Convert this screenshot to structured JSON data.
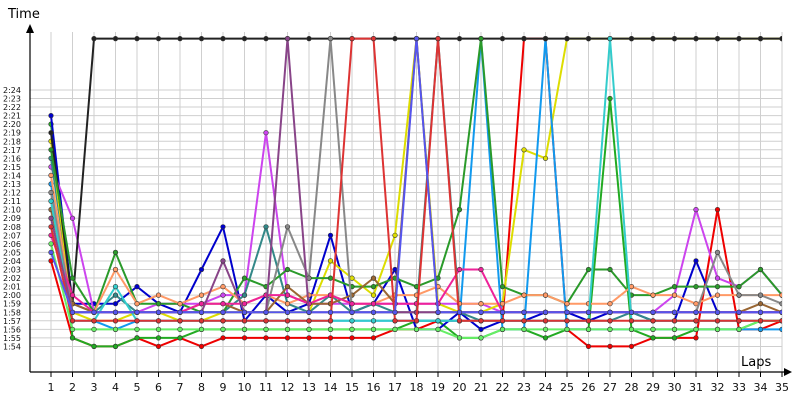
{
  "chart_data": {
    "type": "line",
    "title": "",
    "ylabel": "Time",
    "xlabel": "Laps",
    "grid": true,
    "legend": "none",
    "x": [
      1,
      2,
      3,
      4,
      5,
      6,
      7,
      8,
      9,
      10,
      11,
      12,
      13,
      14,
      15,
      16,
      17,
      18,
      19,
      20,
      21,
      22,
      23,
      24,
      25,
      26,
      27,
      28,
      29,
      30,
      31,
      32,
      33,
      34,
      35
    ],
    "xlim": [
      1,
      35
    ],
    "ylim_seconds": [
      113,
      145
    ],
    "ytick_labels": [
      "1:54",
      "1:55",
      "1:56",
      "1:57",
      "1:58",
      "1:59",
      "2:00",
      "2:01",
      "2:02",
      "2:03",
      "2:04",
      "2:05",
      "2:06",
      "2:07",
      "2:08",
      "2:09",
      "2:10",
      "2:11",
      "2:12",
      "2:13",
      "2:14",
      "2:15",
      "2:16",
      "2:17",
      "2:18",
      "2:19",
      "2:20",
      "2:21",
      "2:22",
      "2:23",
      "2:24"
    ],
    "xtick_labels": [
      "1",
      "2",
      "3",
      "4",
      "5",
      "6",
      "7",
      "8",
      "9",
      "10",
      "11",
      "12",
      "13",
      "14",
      "15",
      "16",
      "17",
      "18",
      "19",
      "20",
      "21",
      "22",
      "23",
      "24",
      "25",
      "26",
      "27",
      "28",
      "29",
      "30",
      "31",
      "32",
      "33",
      "34",
      "35"
    ],
    "series": [
      {
        "color": "#ee0000",
        "values": [
          "2:04",
          "1:55",
          "1:54",
          "1:54",
          "1:55",
          "1:54",
          "1:55",
          "1:54",
          "1:55",
          "1:55",
          "1:55",
          "1:55",
          "1:55",
          "1:55",
          "1:55",
          "1:55",
          "1:56",
          "1:56",
          "1:57",
          "1:57",
          "1:57",
          "1:57",
          "2:30",
          "2:30",
          "1:56",
          "1:54",
          "1:54",
          "1:54",
          "1:55",
          "1:55",
          "1:55",
          "2:10",
          "1:56",
          "1:56",
          "1:57"
        ]
      },
      {
        "color": "#22aa22",
        "values": [
          "2:20",
          "1:55",
          "1:54",
          "1:54",
          "1:55",
          "1:55",
          "1:55",
          "1:56",
          "1:56",
          "1:56",
          "1:56",
          "1:56",
          "1:56",
          "1:56",
          "1:56",
          "1:56",
          "1:56",
          "1:57",
          "1:57",
          "1:55",
          "1:55",
          "1:56",
          "1:56",
          "1:55",
          "1:56",
          "1:56",
          "2:23",
          "1:56",
          "1:55",
          "1:55",
          "1:56",
          "1:56",
          "1:56",
          "1:57",
          "1:57"
        ]
      },
      {
        "color": "#0000cc",
        "values": [
          "2:21",
          "1:59",
          "1:59",
          "1:59",
          "2:01",
          "1:59",
          "1:58",
          "2:03",
          "2:08",
          "1:57",
          "2:00",
          "1:58",
          "1:59",
          "2:07",
          "1:58",
          "1:59",
          "2:03",
          "1:56",
          "1:56",
          "1:58",
          "1:56",
          "1:57",
          "1:57",
          "1:58",
          "1:58",
          "1:57",
          "1:58",
          "1:58",
          "1:57",
          "1:57",
          "2:04",
          "1:58",
          "1:58",
          "1:58",
          "1:58"
        ]
      },
      {
        "color": "#cc44ee",
        "values": [
          "2:15",
          "2:09",
          "1:58",
          "1:58",
          "1:58",
          "1:59",
          "1:59",
          "1:59",
          "2:00",
          "2:00",
          "2:19",
          "2:00",
          "1:59",
          "1:59",
          "1:59",
          "1:59",
          "1:59",
          "1:59",
          "1:59",
          "1:59",
          "1:59",
          "1:58",
          "1:58",
          "1:58",
          "1:58",
          "1:58",
          "1:58",
          "1:58",
          "1:58",
          "2:00",
          "2:10",
          "2:02",
          "2:01",
          "2:03",
          "2:00"
        ]
      },
      {
        "color": "#338888",
        "values": [
          "2:16",
          "1:59",
          "1:58",
          "2:00",
          "1:58",
          "1:58",
          "1:58",
          "1:58",
          "1:58",
          "2:00",
          "2:08",
          "1:59",
          "1:58",
          "2:00",
          "1:58",
          "1:59",
          "1:58",
          "1:58",
          "2:30",
          "1:58",
          "1:57",
          "1:57",
          "1:57",
          "1:57",
          "1:57",
          "1:57",
          "1:57",
          "1:58",
          "1:57",
          "1:57",
          "1:57",
          "1:57",
          "1:57",
          "1:57",
          "1:57"
        ]
      },
      {
        "color": "#dddd00",
        "values": [
          "2:18",
          "1:58",
          "1:57",
          "1:57",
          "1:58",
          "1:58",
          "1:57",
          "1:57",
          "1:58",
          "1:58",
          "1:58",
          "1:58",
          "1:58",
          "2:04",
          "2:02",
          "2:00",
          "2:07",
          "2:30",
          "1:59",
          "1:58",
          "1:58",
          "1:59",
          "2:17",
          "2:16",
          "2:30",
          "2:30",
          "2:30",
          "2:30",
          "2:30",
          "2:30",
          "2:30",
          "2:30",
          "2:30",
          "2:30",
          "2:30"
        ]
      },
      {
        "color": "#1199ee",
        "values": [
          "2:13",
          "1:57",
          "1:57",
          "1:56",
          "1:57",
          "1:57",
          "1:57",
          "1:57",
          "1:57",
          "1:57",
          "1:57",
          "1:57",
          "1:57",
          "1:57",
          "1:57",
          "1:57",
          "1:57",
          "1:57",
          "1:57",
          "1:57",
          "2:30",
          "1:56",
          "1:56",
          "2:30",
          "1:56",
          "1:56",
          "1:56",
          "1:56",
          "1:56",
          "1:56",
          "1:56",
          "1:56",
          "1:56",
          "1:56",
          "1:56"
        ]
      },
      {
        "color": "#222222",
        "values": [
          "2:19",
          "1:59",
          "2:30",
          "2:30",
          "2:30",
          "2:30",
          "2:30",
          "2:30",
          "2:30",
          "2:30",
          "2:30",
          "2:30",
          "2:30",
          "2:30",
          "2:30",
          "2:30",
          "2:30",
          "2:30",
          "2:30",
          "2:30",
          "2:30",
          "2:30",
          "2:30",
          "2:30",
          "2:30",
          "2:30",
          "2:30",
          "2:30",
          "2:30",
          "2:30",
          "2:30",
          "2:30",
          "2:30",
          "2:30",
          "2:30"
        ]
      },
      {
        "color": "#2a9a2a",
        "values": [
          "2:17",
          "2:02",
          "1:58",
          "2:05",
          "1:59",
          "1:59",
          "1:59",
          "1:58",
          "1:58",
          "2:02",
          "2:01",
          "2:03",
          "2:02",
          "2:02",
          "2:01",
          "2:01",
          "2:02",
          "2:01",
          "2:02",
          "2:10",
          "2:30",
          "2:01",
          "2:00",
          "2:00",
          "1:59",
          "2:03",
          "2:03",
          "2:00",
          "2:00",
          "2:01",
          "2:01",
          "2:01",
          "2:01",
          "2:03",
          "2:00"
        ]
      },
      {
        "color": "#ff9966",
        "values": [
          "2:14",
          "1:58",
          "1:58",
          "2:03",
          "1:59",
          "2:00",
          "1:59",
          "2:00",
          "2:01",
          "1:59",
          "2:00",
          "1:59",
          "2:00",
          "2:00",
          "1:59",
          "1:59",
          "2:00",
          "2:00",
          "2:01",
          "1:59",
          "1:59",
          "1:59",
          "2:00",
          "2:00",
          "1:59",
          "1:59",
          "1:59",
          "2:01",
          "2:00",
          "2:00",
          "1:59",
          "2:00",
          "2:00",
          "2:00",
          "2:00"
        ]
      },
      {
        "color": "#996633",
        "values": [
          "2:10",
          "1:59",
          "1:58",
          "1:58",
          "1:58",
          "1:58",
          "1:58",
          "1:59",
          "1:59",
          "1:58",
          "1:58",
          "2:01",
          "1:59",
          "1:59",
          "2:00",
          "2:02",
          "1:59",
          "2:30",
          "1:58",
          "1:58",
          "1:58",
          "1:58",
          "1:58",
          "1:58",
          "1:58",
          "1:58",
          "1:58",
          "1:58",
          "1:58",
          "1:58",
          "1:58",
          "1:58",
          "1:58",
          "1:59",
          "1:58"
        ]
      },
      {
        "color": "#888888",
        "values": [
          "2:12",
          "1:58",
          "1:58",
          "1:58",
          "1:58",
          "1:58",
          "1:58",
          "1:58",
          "1:58",
          "1:58",
          "1:58",
          "2:08",
          "2:02",
          "2:30",
          "1:58",
          "1:58",
          "1:58",
          "1:58",
          "1:58",
          "1:58",
          "1:58",
          "1:58",
          "1:58",
          "1:58",
          "1:58",
          "1:58",
          "1:58",
          "1:58",
          "1:58",
          "1:58",
          "1:58",
          "2:05",
          "2:00",
          "2:00",
          "1:59"
        ]
      },
      {
        "color": "#ee2299",
        "values": [
          "2:07",
          "2:00",
          "1:58",
          "1:58",
          "1:58",
          "1:58",
          "1:58",
          "1:59",
          "1:59",
          "1:59",
          "2:00",
          "2:00",
          "1:59",
          "2:00",
          "1:59",
          "1:59",
          "1:59",
          "1:59",
          "1:59",
          "2:03",
          "2:03",
          "1:58",
          "1:58",
          "1:58",
          "1:58",
          "1:58",
          "1:58",
          "1:58",
          "1:58",
          "1:58",
          "1:58",
          "1:58",
          "1:58",
          "1:58",
          "1:58"
        ]
      },
      {
        "color": "#33cccc",
        "values": [
          "2:11",
          "1:57",
          "1:57",
          "2:01",
          "1:57",
          "1:57",
          "1:57",
          "1:57",
          "1:57",
          "1:57",
          "1:57",
          "1:57",
          "1:57",
          "1:57",
          "1:57",
          "1:57",
          "1:57",
          "1:57",
          "1:57",
          "1:57",
          "1:57",
          "1:57",
          "1:57",
          "1:57",
          "1:57",
          "1:57",
          "2:30",
          "1:57",
          "1:57",
          "1:57",
          "1:57",
          "1:57",
          "1:57",
          "1:57",
          "1:57"
        ]
      },
      {
        "color": "#884488",
        "values": [
          "2:09",
          "1:58",
          "1:58",
          "1:58",
          "1:58",
          "1:58",
          "1:58",
          "1:58",
          "2:04",
          "1:58",
          "1:58",
          "2:30",
          "1:58",
          "1:58",
          "1:58",
          "1:58",
          "1:58",
          "1:58",
          "1:58",
          "1:58",
          "1:58",
          "1:58",
          "1:58",
          "1:58",
          "1:58",
          "1:58",
          "1:58",
          "1:58",
          "1:58",
          "1:58",
          "1:58",
          "1:58",
          "1:58",
          "1:58",
          "1:58"
        ]
      },
      {
        "color": "#66ee66",
        "values": [
          "2:06",
          "1:56",
          "1:56",
          "1:56",
          "1:56",
          "1:56",
          "1:56",
          "1:56",
          "1:56",
          "1:56",
          "1:56",
          "1:56",
          "1:56",
          "1:56",
          "1:56",
          "1:56",
          "1:56",
          "1:56",
          "1:56",
          "1:55",
          "1:55",
          "1:56",
          "1:56",
          "1:56",
          "1:56",
          "1:56",
          "1:56",
          "1:56",
          "1:56",
          "1:56",
          "1:56",
          "1:56",
          "1:56",
          "1:57",
          "1:57"
        ]
      },
      {
        "color": "#dd3333",
        "values": [
          "2:08",
          "1:57",
          "1:57",
          "1:57",
          "1:57",
          "1:57",
          "1:57",
          "1:57",
          "1:57",
          "1:57",
          "1:57",
          "1:57",
          "1:57",
          "1:57",
          "2:30",
          "2:30",
          "1:57",
          "1:57",
          "2:30",
          "1:57",
          "1:57",
          "1:57",
          "1:57",
          "1:57",
          "1:57",
          "1:57",
          "1:57",
          "1:57",
          "1:57",
          "1:57",
          "1:57",
          "1:57",
          "1:57",
          "1:57",
          "1:57"
        ]
      },
      {
        "color": "#5555ee",
        "values": [
          "2:05",
          "1:58",
          "1:58",
          "1:58",
          "1:58",
          "1:58",
          "1:58",
          "1:58",
          "1:58",
          "1:58",
          "1:58",
          "1:58",
          "1:58",
          "1:58",
          "1:58",
          "1:58",
          "1:58",
          "2:30",
          "1:58",
          "1:58",
          "1:58",
          "1:58",
          "1:58",
          "1:58",
          "1:58",
          "1:58",
          "1:58",
          "1:58",
          "1:58",
          "1:58",
          "1:58",
          "1:58",
          "1:58",
          "1:58",
          "1:58"
        ]
      }
    ]
  }
}
